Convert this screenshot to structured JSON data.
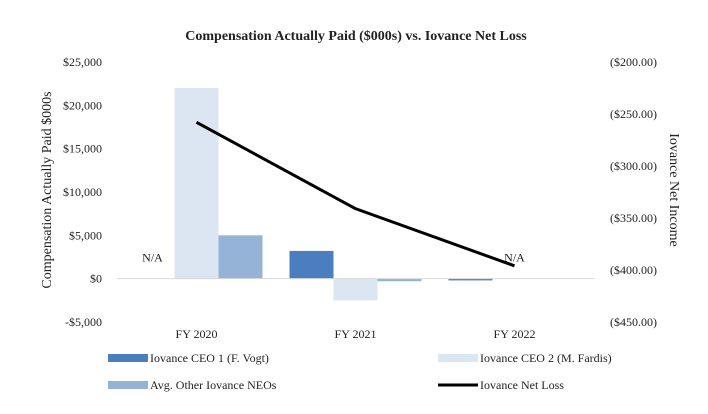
{
  "chart_data": {
    "type": "bar",
    "title": "Compensation Actually Paid ($000s) vs. Iovance Net Loss",
    "categories": [
      "FY 2020",
      "FY 2021",
      "FY 2022"
    ],
    "ylabel": "Compensation Actually Paid $000s",
    "y2label": "Iovance Net Income",
    "ylim": [
      -5000,
      25000
    ],
    "y2lim": [
      -450,
      -200
    ],
    "yticks": [
      25000,
      20000,
      15000,
      10000,
      5000,
      0,
      -5000
    ],
    "ytick_labels": [
      "$25,000",
      "$20,000",
      "$15,000",
      "$10,000",
      "$5,000",
      "$0",
      "-$5,000"
    ],
    "y2ticks": [
      -200,
      -250,
      -300,
      -350,
      -400,
      -450
    ],
    "y2tick_labels": [
      "($200.00)",
      "($250.00)",
      "($300.00)",
      "($350.00)",
      "($400.00)",
      "($450.00)"
    ],
    "grid": false,
    "legend_position": "bottom",
    "series": [
      {
        "name": "Iovance CEO 1 (F. Vogt)",
        "type": "bar",
        "color": "#4a7ebf",
        "values": [
          null,
          3200,
          -200
        ]
      },
      {
        "name": "Iovance CEO 2 (M. Fardis)",
        "type": "bar",
        "color": "#dce6f2",
        "values": [
          22000,
          -2500,
          null
        ]
      },
      {
        "name": "Avg. Other Iovance NEOs",
        "type": "bar",
        "color": "#95b3d7",
        "values": [
          5000,
          -300,
          null
        ]
      },
      {
        "name": "Iovance Net Loss",
        "type": "line",
        "axis": "right",
        "color": "#000000",
        "values": [
          -258,
          -341,
          -396
        ]
      }
    ],
    "annotations": [
      {
        "text": "N/A",
        "category": "FY 2020",
        "series": "Iovance CEO 1 (F. Vogt)"
      },
      {
        "text": "N/A",
        "category": "FY 2022",
        "series": "Iovance CEO 2 (M. Fardis)"
      }
    ]
  }
}
